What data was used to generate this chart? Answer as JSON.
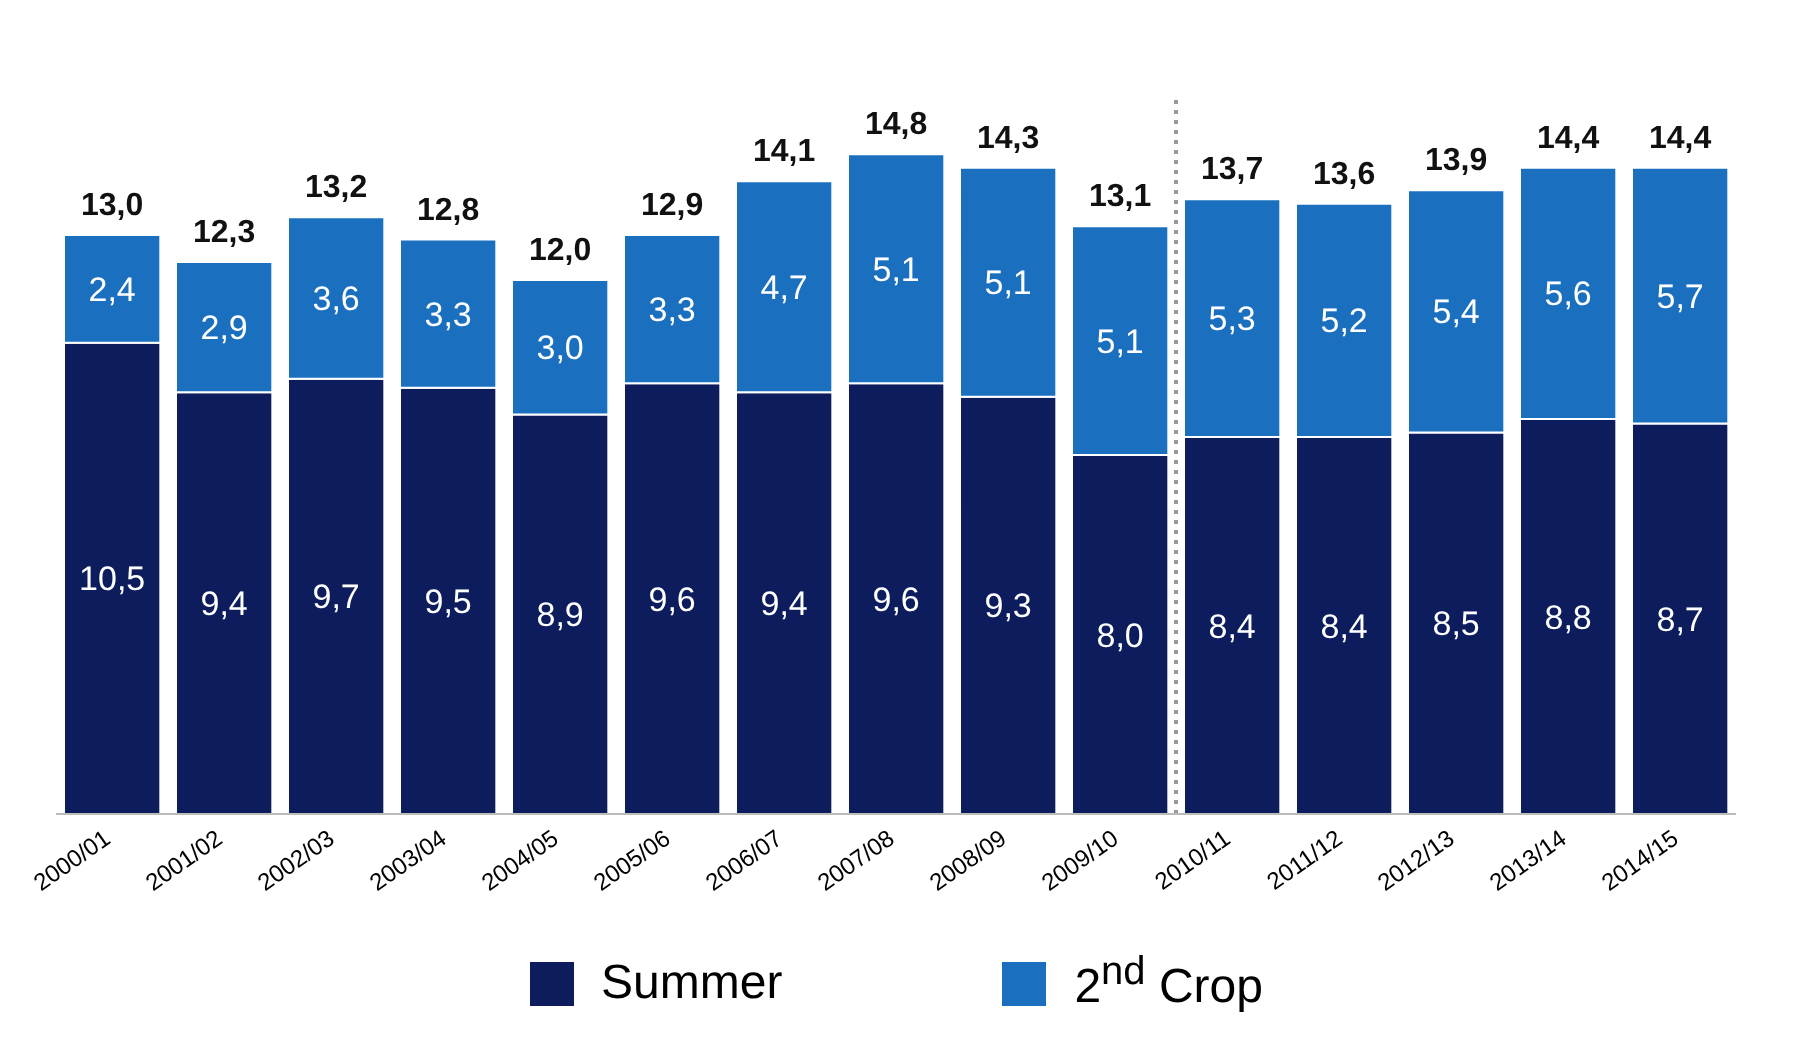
{
  "chart_data": {
    "type": "bar",
    "stacked": true,
    "categories": [
      "2000/01",
      "2001/02",
      "2002/03",
      "2003/04",
      "2004/05",
      "2005/06",
      "2006/07",
      "2007/08",
      "2008/09",
      "2009/10",
      "2010/11",
      "2011/12",
      "2012/13",
      "2013/14",
      "2014/15"
    ],
    "series": [
      {
        "name": "Summer",
        "color": "#0c1c5c",
        "values": [
          10.5,
          9.4,
          9.7,
          9.5,
          8.9,
          9.6,
          9.4,
          9.6,
          9.3,
          8.0,
          8.4,
          8.4,
          8.5,
          8.8,
          8.7
        ],
        "value_labels": [
          "10,5",
          "9,4",
          "9,7",
          "9,5",
          "8,9",
          "9,6",
          "9,4",
          "9,6",
          "9,3",
          "8,0",
          "8,4",
          "8,4",
          "8,5",
          "8,8",
          "8,7"
        ]
      },
      {
        "name": "2$^{nd}$ Crop",
        "color": "#1a6fbf",
        "values": [
          2.4,
          2.9,
          3.6,
          3.3,
          3.0,
          3.3,
          4.7,
          5.1,
          5.1,
          5.1,
          5.3,
          5.2,
          5.4,
          5.6,
          5.7
        ],
        "value_labels": [
          "2,4",
          "2,9",
          "3,6",
          "3,3",
          "3,0",
          "3,3",
          "4,7",
          "5,1",
          "5,1",
          "5,1",
          "5,3",
          "5,2",
          "5,4",
          "5,6",
          "5,7"
        ]
      }
    ],
    "totals": [
      "13,0",
      "12,3",
      "13,2",
      "12,8",
      "12,0",
      "12,9",
      "14,1",
      "14,8",
      "14,3",
      "13,1",
      "13,7",
      "13,6",
      "13,9",
      "14,4",
      "14,4"
    ],
    "ref_lines": [
      {
        "axis": "x",
        "value": "2010/11",
        "color": "#999999",
        "line_style": "dotted"
      }
    ],
    "legend": "bottom",
    "grid": false
  }
}
